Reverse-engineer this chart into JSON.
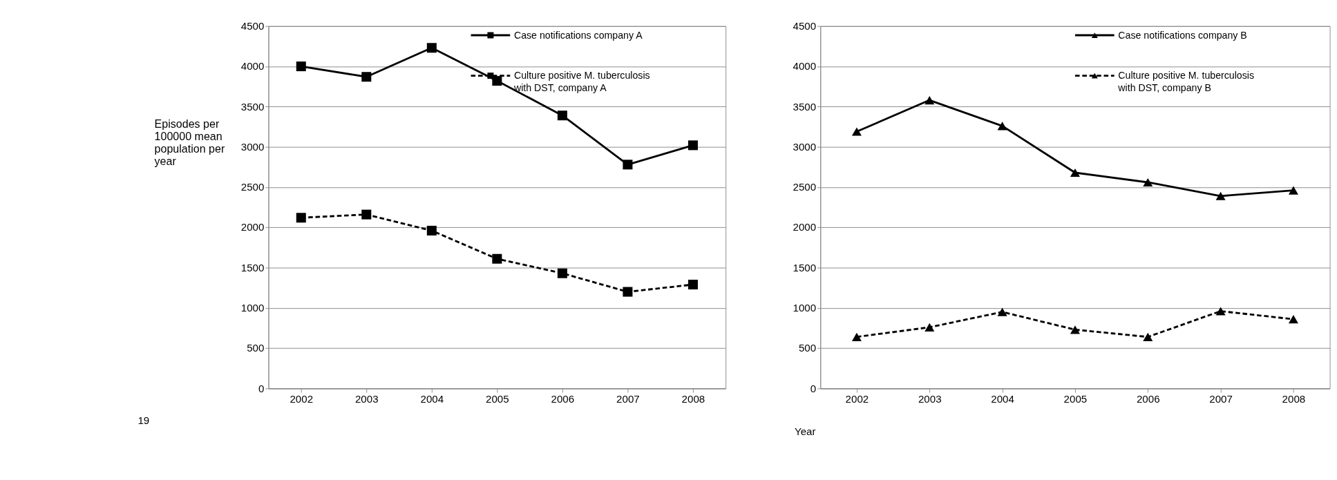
{
  "chart_data": [
    {
      "type": "line",
      "ylabel": "Episodes per 100000 mean population per year",
      "categories": [
        "2002",
        "2003",
        "2004",
        "2005",
        "2006",
        "2007",
        "2008"
      ],
      "ylim": [
        0,
        4500
      ],
      "yticks": [
        0,
        500,
        1000,
        1500,
        2000,
        2500,
        3000,
        3500,
        4000,
        4500
      ],
      "grid": "y",
      "legend": "top right",
      "marker": "square",
      "annotations": [
        "19"
      ],
      "series": [
        {
          "name": "Case notifications company A",
          "color": "#000000",
          "line_style": "solid",
          "values": [
            4000,
            3870,
            4230,
            3820,
            3390,
            2780,
            3020
          ]
        },
        {
          "name": "Culture positive M. tuberculosis with DST, company A",
          "color": "#000000",
          "line_style": "dashed",
          "values": [
            2120,
            2160,
            1960,
            1610,
            1430,
            1200,
            1290
          ]
        }
      ]
    },
    {
      "type": "line",
      "xlabel": "Year",
      "categories": [
        "2002",
        "2003",
        "2004",
        "2005",
        "2006",
        "2007",
        "2008"
      ],
      "ylim": [
        0,
        4500
      ],
      "yticks": [
        0,
        500,
        1000,
        1500,
        2000,
        2500,
        3000,
        3500,
        4000,
        4500
      ],
      "grid": "y",
      "legend": "top right",
      "marker": "triangle",
      "series": [
        {
          "name": "Case notifications company B",
          "color": "#000000",
          "line_style": "solid",
          "values": [
            3190,
            3580,
            3260,
            2680,
            2560,
            2390,
            2460
          ]
        },
        {
          "name": "Culture positive M. tuberculosis with DST, company B",
          "color": "#000000",
          "line_style": "dashed",
          "values": [
            640,
            760,
            950,
            730,
            640,
            960,
            860
          ]
        }
      ]
    }
  ]
}
